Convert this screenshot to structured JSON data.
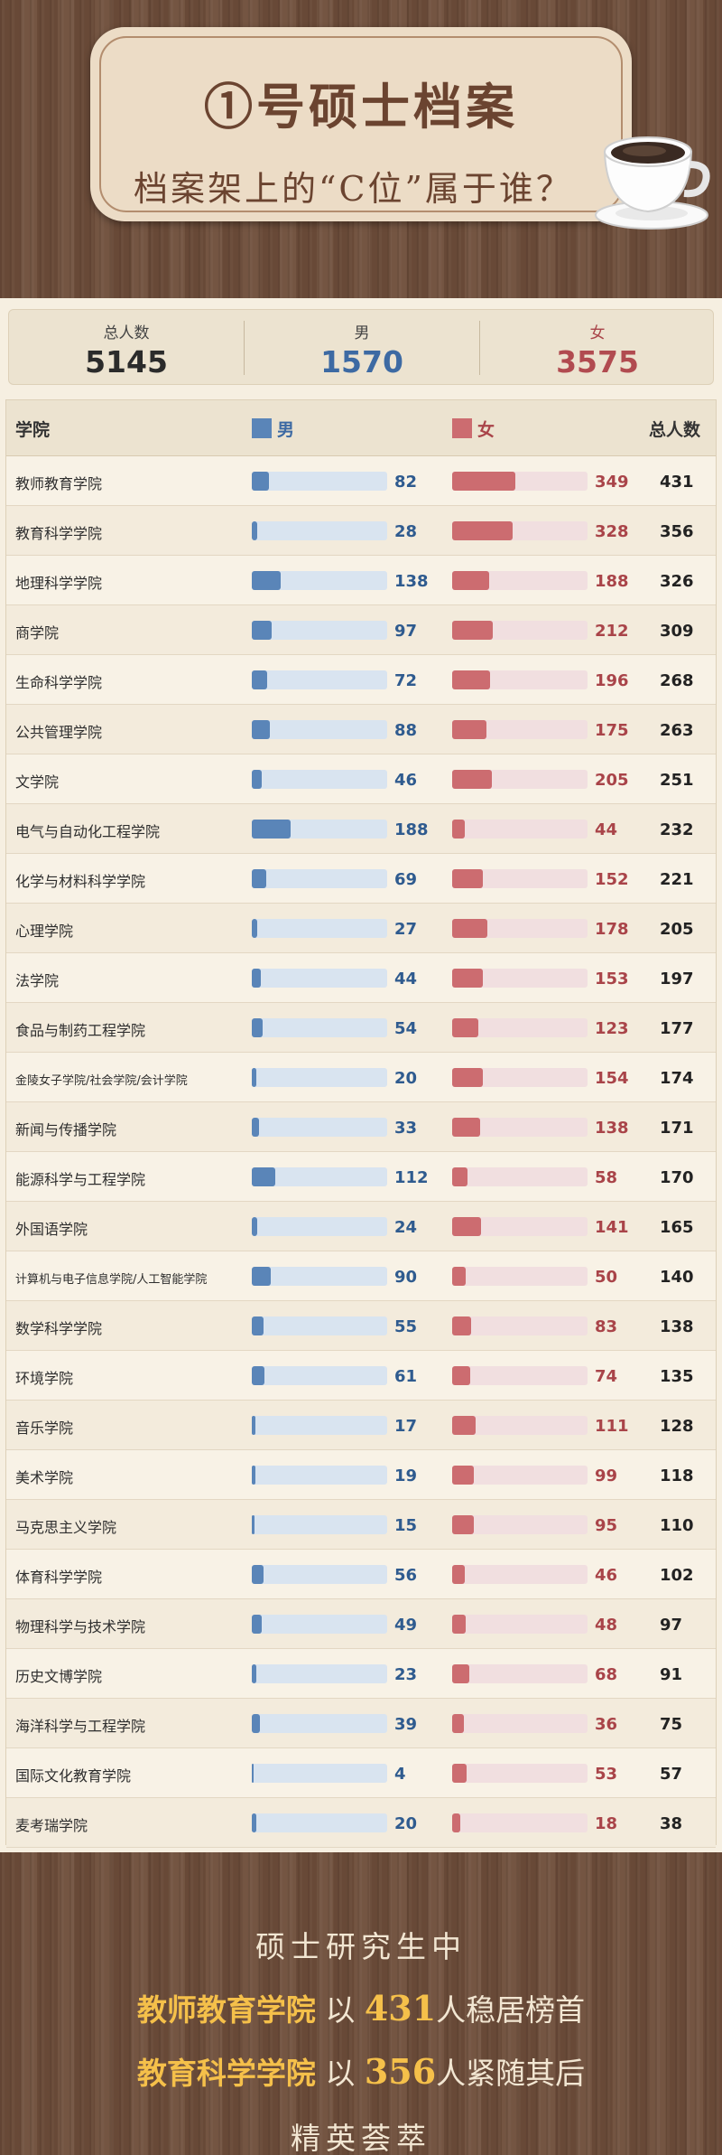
{
  "header": {
    "title": "①号硕士档案",
    "subtitle": "档案架上的“C位”属于谁？"
  },
  "summary": {
    "total_label": "总人数",
    "total_value": "5145",
    "male_label": "男",
    "male_value": "1570",
    "female_label": "女",
    "female_value": "3575"
  },
  "colors": {
    "male": "#5a85b8",
    "female": "#cc6c70",
    "male_text": "#2f5b8f",
    "female_text": "#a94449"
  },
  "table": {
    "col_college": "学院",
    "col_male": "男",
    "col_female": "女",
    "col_total": "总人数"
  },
  "chart_data": {
    "type": "bar",
    "categories": [
      "教师教育学院",
      "教育科学学院",
      "地理科学学院",
      "商学院",
      "生命科学学院",
      "公共管理学院",
      "文学院",
      "电气与自动化工程学院",
      "化学与材料科学学院",
      "心理学院",
      "法学院",
      "食品与制药工程学院",
      "金陵女子学院/社会学院/会计学院",
      "新闻与传播学院",
      "能源科学与工程学院",
      "外国语学院",
      "计算机与电子信息学院/人工智能学院",
      "数学科学学院",
      "环境学院",
      "音乐学院",
      "美术学院",
      "马克思主义学院",
      "体育科学学院",
      "物理科学与技术学院",
      "历史文博学院",
      "海洋科学与工程学院",
      "国际文化教育学院",
      "麦考瑞学院"
    ],
    "series": [
      {
        "name": "男",
        "values": [
          82,
          28,
          138,
          97,
          72,
          88,
          46,
          188,
          69,
          27,
          44,
          54,
          20,
          33,
          112,
          24,
          90,
          55,
          61,
          17,
          19,
          15,
          56,
          49,
          23,
          39,
          4,
          20
        ]
      },
      {
        "name": "女",
        "values": [
          349,
          328,
          188,
          212,
          196,
          175,
          205,
          44,
          152,
          178,
          153,
          123,
          154,
          138,
          58,
          141,
          50,
          83,
          74,
          111,
          99,
          95,
          46,
          48,
          68,
          36,
          53,
          18
        ]
      }
    ],
    "totals": [
      431,
      356,
      326,
      309,
      268,
      263,
      251,
      232,
      221,
      205,
      197,
      177,
      174,
      171,
      170,
      165,
      140,
      138,
      135,
      128,
      118,
      110,
      102,
      97,
      91,
      75,
      57,
      38
    ],
    "male_bar_max": 650,
    "female_bar_max": 650
  },
  "footer": {
    "line1": "硕士研究生中",
    "line2_college": "教师教育学院",
    "line2_pre": "以",
    "line2_num": "431",
    "line2_post": "人稳居榜首",
    "line3_college": "教育科学学院",
    "line3_pre": "以",
    "line3_num": "356",
    "line3_post": "人紧随其后",
    "line4": "精英荟萃"
  }
}
